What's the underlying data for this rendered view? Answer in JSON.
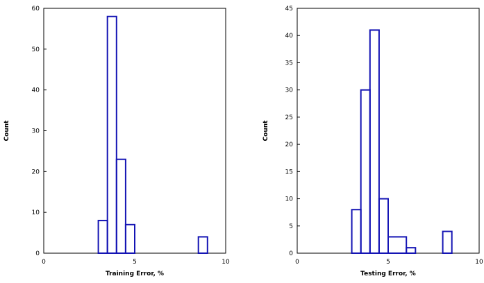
{
  "chart_data": [
    {
      "type": "histogram",
      "xlabel": "Training Error, %",
      "ylabel": "Count",
      "xlim": [
        0,
        10
      ],
      "ylim": [
        0,
        60
      ],
      "xticks": [
        0,
        5,
        10
      ],
      "yticks": [
        0,
        10,
        20,
        30,
        40,
        50,
        60
      ],
      "grid": false,
      "color": "#1414b4",
      "bins": [
        {
          "x0": 3.0,
          "x1": 3.5,
          "count": 8
        },
        {
          "x0": 3.5,
          "x1": 4.0,
          "count": 58
        },
        {
          "x0": 4.0,
          "x1": 4.5,
          "count": 23
        },
        {
          "x0": 4.5,
          "x1": 5.0,
          "count": 7
        },
        {
          "x0": 8.5,
          "x1": 9.0,
          "count": 4
        }
      ]
    },
    {
      "type": "histogram",
      "xlabel": "Testing Error, %",
      "ylabel": "Count",
      "xlim": [
        0,
        10
      ],
      "ylim": [
        0,
        45
      ],
      "xticks": [
        0,
        5,
        10
      ],
      "yticks": [
        0,
        5,
        10,
        15,
        20,
        25,
        30,
        35,
        40,
        45
      ],
      "grid": false,
      "color": "#1414b4",
      "bins": [
        {
          "x0": 3.0,
          "x1": 3.5,
          "count": 8
        },
        {
          "x0": 3.5,
          "x1": 4.0,
          "count": 30
        },
        {
          "x0": 4.0,
          "x1": 4.5,
          "count": 41
        },
        {
          "x0": 4.5,
          "x1": 5.0,
          "count": 10
        },
        {
          "x0": 5.0,
          "x1": 6.0,
          "count": 3
        },
        {
          "x0": 6.0,
          "x1": 6.5,
          "count": 1
        },
        {
          "x0": 8.0,
          "x1": 8.5,
          "count": 4
        }
      ]
    }
  ]
}
